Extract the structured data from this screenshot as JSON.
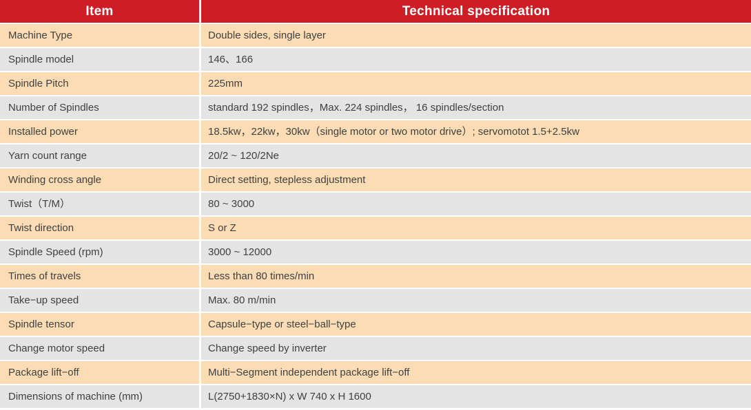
{
  "table": {
    "header": {
      "item": "Item",
      "spec": "Technical specification"
    },
    "rows": [
      {
        "item": "Machine Type",
        "spec": "Double sides, single layer"
      },
      {
        "item": "Spindle model",
        "spec": "146、166"
      },
      {
        "item": "Spindle Pitch",
        "spec": "225mm"
      },
      {
        "item": "Number of Spindles",
        "spec": "standard 192 spindles，Max. 224 spindles，  16 spindles/section"
      },
      {
        "item": "Installed power",
        "spec": "18.5kw，22kw，30kw（single motor or two motor drive）; servomotot 1.5+2.5kw"
      },
      {
        "item": "Yarn count range",
        "spec": "20/2 ~ 120/2Ne"
      },
      {
        "item": "Winding cross angle",
        "spec": "Direct setting, stepless adjustment"
      },
      {
        "item": "Twist（T/M）",
        "spec": "80 ~ 3000"
      },
      {
        "item": "Twist direction",
        "spec": "S or Z"
      },
      {
        "item": "Spindle Speed (rpm)",
        "spec": "3000 ~ 12000"
      },
      {
        "item": "Times of travels",
        "spec": "Less than 80 times/min"
      },
      {
        "item": "Take−up speed",
        "spec": "Max. 80 m/min"
      },
      {
        "item": "Spindle tensor",
        "spec": "Capsule−type or steel−ball−type"
      },
      {
        "item": "Change motor speed",
        "spec": "Change speed by inverter"
      },
      {
        "item": "Package lift−off",
        "spec": "Multi−Segment independent package lift−off"
      },
      {
        "item": "Dimensions of machine (mm)",
        "spec": "L(2750+1830×N) x W 740 x H 1600"
      }
    ]
  },
  "colors": {
    "header_bg": "#cf1d25",
    "header_text": "#ffffff",
    "row_odd_bg": "#fbdcb4",
    "row_even_bg": "#e4e4e4",
    "body_text": "#404040",
    "divider": "#ffffff"
  }
}
